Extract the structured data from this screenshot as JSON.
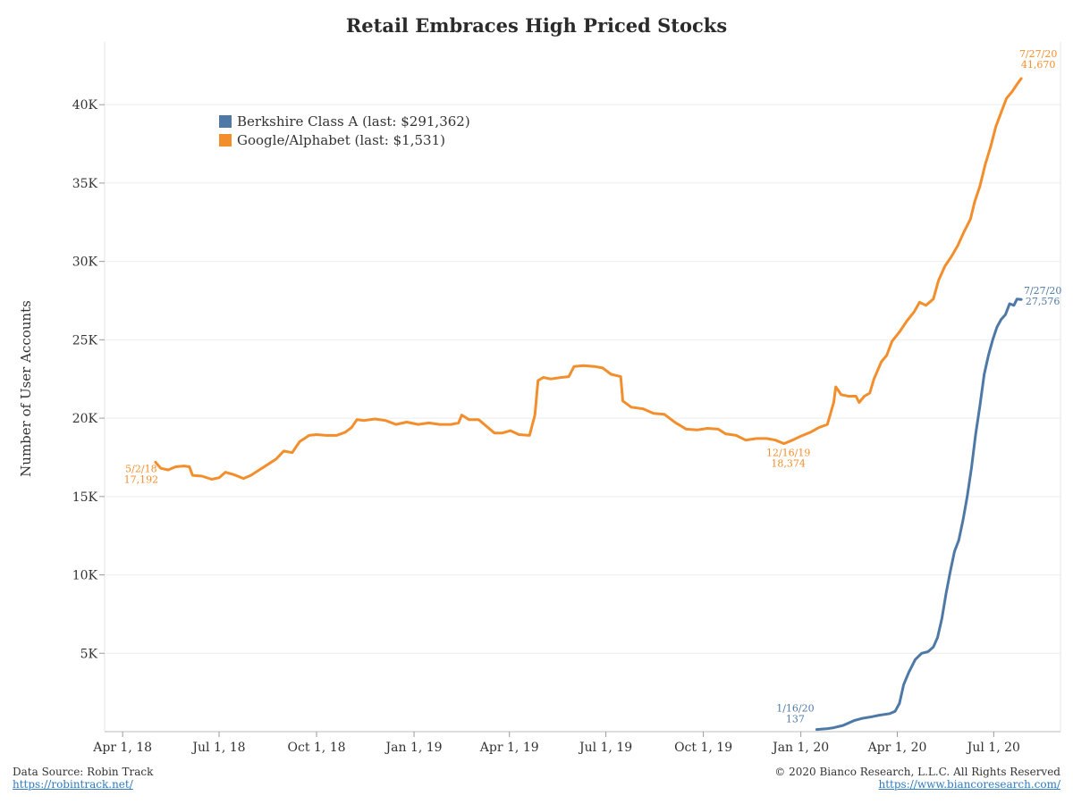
{
  "chart_data": {
    "type": "line",
    "title": "Retail Embraces High Priced Stocks",
    "ylabel": "Number of User Accounts",
    "xlabel": "",
    "ylim": [
      0,
      44000
    ],
    "xlim": [
      "2018-03-15",
      "2020-09-02"
    ],
    "grid": "horizontal",
    "legend_position": "top-left",
    "y_ticks": [
      {
        "value": 5000,
        "label": "5K"
      },
      {
        "value": 10000,
        "label": "10K"
      },
      {
        "value": 15000,
        "label": "15K"
      },
      {
        "value": 20000,
        "label": "20K"
      },
      {
        "value": 25000,
        "label": "25K"
      },
      {
        "value": 30000,
        "label": "30K"
      },
      {
        "value": 35000,
        "label": "35K"
      },
      {
        "value": 40000,
        "label": "40K"
      }
    ],
    "x_ticks": [
      {
        "date": "2018-04-01",
        "label": "Apr 1, 18"
      },
      {
        "date": "2018-07-01",
        "label": "Jul 1, 18"
      },
      {
        "date": "2018-10-01",
        "label": "Oct 1, 18"
      },
      {
        "date": "2019-01-01",
        "label": "Jan 1, 19"
      },
      {
        "date": "2019-04-01",
        "label": "Apr 1, 19"
      },
      {
        "date": "2019-07-01",
        "label": "Jul 1, 19"
      },
      {
        "date": "2019-10-01",
        "label": "Oct 1, 19"
      },
      {
        "date": "2020-01-01",
        "label": "Jan 1, 20"
      },
      {
        "date": "2020-04-01",
        "label": "Apr 1, 20"
      },
      {
        "date": "2020-07-01",
        "label": "Jul 1, 20"
      }
    ],
    "series": [
      {
        "name": "Berkshire Class A (last: $291,362)",
        "color": "#4e79a7",
        "points": [
          [
            "2020-01-16",
            137
          ],
          [
            "2020-01-25",
            180
          ],
          [
            "2020-02-01",
            250
          ],
          [
            "2020-02-10",
            400
          ],
          [
            "2020-02-20",
            700
          ],
          [
            "2020-02-28",
            850
          ],
          [
            "2020-03-08",
            950
          ],
          [
            "2020-03-15",
            1050
          ],
          [
            "2020-03-25",
            1150
          ],
          [
            "2020-03-30",
            1300
          ],
          [
            "2020-04-03",
            1800
          ],
          [
            "2020-04-07",
            3000
          ],
          [
            "2020-04-12",
            3800
          ],
          [
            "2020-04-18",
            4600
          ],
          [
            "2020-04-24",
            5000
          ],
          [
            "2020-04-30",
            5100
          ],
          [
            "2020-05-05",
            5400
          ],
          [
            "2020-05-09",
            6000
          ],
          [
            "2020-05-13",
            7200
          ],
          [
            "2020-05-17",
            8800
          ],
          [
            "2020-05-21",
            10200
          ],
          [
            "2020-05-25",
            11500
          ],
          [
            "2020-05-29",
            12200
          ],
          [
            "2020-06-02",
            13500
          ],
          [
            "2020-06-06",
            15000
          ],
          [
            "2020-06-10",
            16800
          ],
          [
            "2020-06-14",
            19000
          ],
          [
            "2020-06-18",
            20800
          ],
          [
            "2020-06-22",
            22800
          ],
          [
            "2020-06-26",
            24000
          ],
          [
            "2020-06-30",
            25000
          ],
          [
            "2020-07-04",
            25800
          ],
          [
            "2020-07-08",
            26300
          ],
          [
            "2020-07-12",
            26600
          ],
          [
            "2020-07-16",
            27300
          ],
          [
            "2020-07-20",
            27200
          ],
          [
            "2020-07-23",
            27600
          ],
          [
            "2020-07-27",
            27576
          ]
        ]
      },
      {
        "name": "Google/Alphabet (last: $1,531)",
        "color": "#f28e2b",
        "points": [
          [
            "2018-05-02",
            17192
          ],
          [
            "2018-05-07",
            16800
          ],
          [
            "2018-05-14",
            16700
          ],
          [
            "2018-05-21",
            16900
          ],
          [
            "2018-05-29",
            16950
          ],
          [
            "2018-06-03",
            16900
          ],
          [
            "2018-06-06",
            16350
          ],
          [
            "2018-06-15",
            16300
          ],
          [
            "2018-06-24",
            16100
          ],
          [
            "2018-07-01",
            16200
          ],
          [
            "2018-07-07",
            16550
          ],
          [
            "2018-07-15",
            16400
          ],
          [
            "2018-07-24",
            16150
          ],
          [
            "2018-07-31",
            16350
          ],
          [
            "2018-08-08",
            16700
          ],
          [
            "2018-08-15",
            17000
          ],
          [
            "2018-08-24",
            17400
          ],
          [
            "2018-08-31",
            17900
          ],
          [
            "2018-09-08",
            17800
          ],
          [
            "2018-09-15",
            18500
          ],
          [
            "2018-09-24",
            18900
          ],
          [
            "2018-10-01",
            18950
          ],
          [
            "2018-10-10",
            18900
          ],
          [
            "2018-10-20",
            18900
          ],
          [
            "2018-10-28",
            19100
          ],
          [
            "2018-11-03",
            19400
          ],
          [
            "2018-11-08",
            19900
          ],
          [
            "2018-11-15",
            19850
          ],
          [
            "2018-11-25",
            19950
          ],
          [
            "2018-12-05",
            19850
          ],
          [
            "2018-12-15",
            19600
          ],
          [
            "2018-12-25",
            19750
          ],
          [
            "2019-01-05",
            19600
          ],
          [
            "2019-01-15",
            19700
          ],
          [
            "2019-01-25",
            19600
          ],
          [
            "2019-02-05",
            19600
          ],
          [
            "2019-02-12",
            19700
          ],
          [
            "2019-02-15",
            20200
          ],
          [
            "2019-02-22",
            19900
          ],
          [
            "2019-03-03",
            19900
          ],
          [
            "2019-03-10",
            19500
          ],
          [
            "2019-03-18",
            19050
          ],
          [
            "2019-03-25",
            19050
          ],
          [
            "2019-04-02",
            19200
          ],
          [
            "2019-04-10",
            18950
          ],
          [
            "2019-04-20",
            18900
          ],
          [
            "2019-04-25",
            20200
          ],
          [
            "2019-04-28",
            22400
          ],
          [
            "2019-05-03",
            22600
          ],
          [
            "2019-05-10",
            22500
          ],
          [
            "2019-05-20",
            22600
          ],
          [
            "2019-05-27",
            22650
          ],
          [
            "2019-06-01",
            23300
          ],
          [
            "2019-06-10",
            23350
          ],
          [
            "2019-06-20",
            23300
          ],
          [
            "2019-06-28",
            23200
          ],
          [
            "2019-07-06",
            22800
          ],
          [
            "2019-07-15",
            22650
          ],
          [
            "2019-07-17",
            21100
          ],
          [
            "2019-07-25",
            20700
          ],
          [
            "2019-08-05",
            20600
          ],
          [
            "2019-08-15",
            20300
          ],
          [
            "2019-08-25",
            20250
          ],
          [
            "2019-09-05",
            19700
          ],
          [
            "2019-09-15",
            19300
          ],
          [
            "2019-09-25",
            19250
          ],
          [
            "2019-10-05",
            19350
          ],
          [
            "2019-10-15",
            19300
          ],
          [
            "2019-10-22",
            19000
          ],
          [
            "2019-11-01",
            18900
          ],
          [
            "2019-11-10",
            18600
          ],
          [
            "2019-11-20",
            18700
          ],
          [
            "2019-11-30",
            18700
          ],
          [
            "2019-12-08",
            18600
          ],
          [
            "2019-12-16",
            18374
          ],
          [
            "2019-12-24",
            18600
          ],
          [
            "2020-01-01",
            18850
          ],
          [
            "2020-01-10",
            19100
          ],
          [
            "2020-01-18",
            19400
          ],
          [
            "2020-01-26",
            19600
          ],
          [
            "2020-02-01",
            21000
          ],
          [
            "2020-02-03",
            22000
          ],
          [
            "2020-02-08",
            21500
          ],
          [
            "2020-02-15",
            21400
          ],
          [
            "2020-02-22",
            21400
          ],
          [
            "2020-02-25",
            21000
          ],
          [
            "2020-03-01",
            21400
          ],
          [
            "2020-03-06",
            21600
          ],
          [
            "2020-03-10",
            22500
          ],
          [
            "2020-03-17",
            23600
          ],
          [
            "2020-03-22",
            24000
          ],
          [
            "2020-03-27",
            24900
          ],
          [
            "2020-04-03",
            25500
          ],
          [
            "2020-04-10",
            26200
          ],
          [
            "2020-04-17",
            26800
          ],
          [
            "2020-04-22",
            27400
          ],
          [
            "2020-04-28",
            27200
          ],
          [
            "2020-05-05",
            27600
          ],
          [
            "2020-05-10",
            28800
          ],
          [
            "2020-05-16",
            29700
          ],
          [
            "2020-05-22",
            30300
          ],
          [
            "2020-05-28",
            31000
          ],
          [
            "2020-06-03",
            31900
          ],
          [
            "2020-06-09",
            32700
          ],
          [
            "2020-06-13",
            33800
          ],
          [
            "2020-06-18",
            34800
          ],
          [
            "2020-06-23",
            36200
          ],
          [
            "2020-06-28",
            37300
          ],
          [
            "2020-07-03",
            38600
          ],
          [
            "2020-07-08",
            39500
          ],
          [
            "2020-07-13",
            40400
          ],
          [
            "2020-07-18",
            40800
          ],
          [
            "2020-07-23",
            41300
          ],
          [
            "2020-07-27",
            41670
          ]
        ]
      }
    ],
    "annotations": [
      {
        "series": 1,
        "date": "2018-05-02",
        "value": 17192,
        "date_label": "5/2/18",
        "value_label": "17,192",
        "side": "left"
      },
      {
        "series": 1,
        "date": "2019-12-16",
        "value": 18374,
        "date_label": "12/16/19",
        "value_label": "18,374",
        "side": "below"
      },
      {
        "series": 1,
        "date": "2020-07-27",
        "value": 41670,
        "date_label": "7/27/20",
        "value_label": "41,670",
        "side": "above"
      },
      {
        "series": 0,
        "date": "2020-01-16",
        "value": 137,
        "date_label": "1/16/20",
        "value_label": "137",
        "side": "above-left"
      },
      {
        "series": 0,
        "date": "2020-07-27",
        "value": 27576,
        "date_label": "7/27/20",
        "value_label": "27,576",
        "side": "right"
      }
    ]
  },
  "footer": {
    "source_label": "Data Source: Robin Track",
    "source_url": "https://robintrack.net/",
    "copyright": "© 2020 Bianco Research, L.L.C. All Rights Reserved",
    "site_url": "https://www.biancoresearch.com/"
  }
}
